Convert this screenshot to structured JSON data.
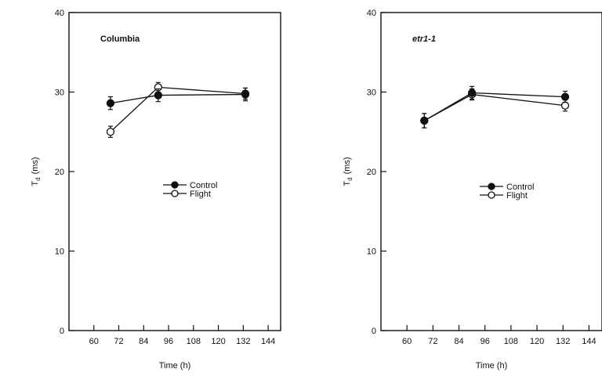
{
  "chart_data": [
    {
      "type": "line",
      "panel_label": "Columbia",
      "title": "",
      "xlabel": "Time (h)",
      "ylabel_main": "T",
      "ylabel_sub": "d",
      "ylabel_unit": "(ms)",
      "xlim": [
        48,
        150
      ],
      "ylim": [
        0,
        40
      ],
      "xticks": [
        60,
        72,
        84,
        96,
        108,
        120,
        132,
        144
      ],
      "yticks": [
        0,
        10,
        20,
        30,
        40
      ],
      "grid": false,
      "legend_placement": "center-right",
      "series": [
        {
          "name": "Control",
          "marker": "filled-circle",
          "x": [
            68,
            91,
            133
          ],
          "y": [
            28.6,
            29.6,
            29.7
          ],
          "err": [
            0.8,
            0.8,
            0.8
          ]
        },
        {
          "name": "Flight",
          "marker": "open-circle",
          "x": [
            68,
            91,
            133
          ],
          "y": [
            25.0,
            30.6,
            29.8
          ],
          "err": [
            0.7,
            0.6,
            0.7
          ]
        }
      ]
    },
    {
      "type": "line",
      "panel_label": "etr1-1",
      "title": "",
      "xlabel": "Time (h)",
      "ylabel_main": "T",
      "ylabel_sub": "d",
      "ylabel_unit": "(ms)",
      "xlim": [
        48,
        150
      ],
      "ylim": [
        0,
        40
      ],
      "xticks": [
        60,
        72,
        84,
        96,
        108,
        120,
        132,
        144
      ],
      "yticks": [
        0,
        10,
        20,
        30,
        40
      ],
      "grid": false,
      "legend_placement": "center-right",
      "series": [
        {
          "name": "Control",
          "marker": "filled-circle",
          "x": [
            68,
            90,
            133
          ],
          "y": [
            26.4,
            29.9,
            29.4
          ],
          "err": [
            0.9,
            0.8,
            0.7
          ]
        },
        {
          "name": "Flight",
          "marker": "open-circle",
          "x": [
            68,
            90,
            133
          ],
          "y": [
            26.4,
            29.7,
            28.3
          ],
          "err": [
            0.9,
            0.7,
            0.7
          ]
        }
      ]
    }
  ]
}
